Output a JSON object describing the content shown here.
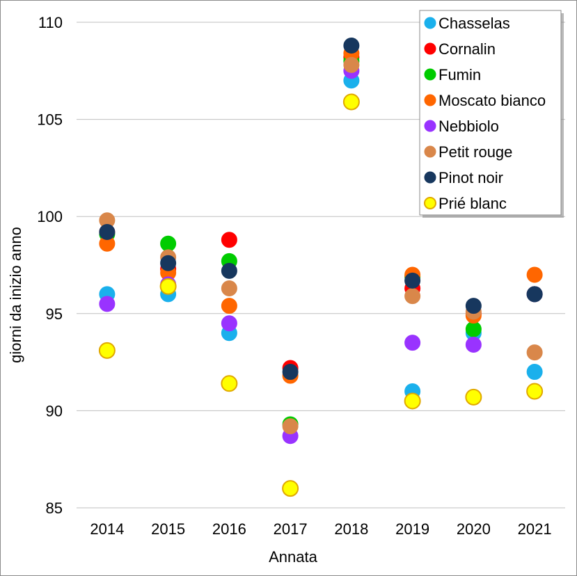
{
  "chart_data": {
    "type": "scatter",
    "xlabel": "Annata",
    "ylabel": "giorni da inizio anno",
    "categories": [
      "2014",
      "2015",
      "2016",
      "2017",
      "2018",
      "2019",
      "2020",
      "2021"
    ],
    "ylim": [
      85,
      110
    ],
    "yticks": [
      85,
      90,
      95,
      100,
      105,
      110
    ],
    "grid": true,
    "legend_position": "top-right",
    "series": [
      {
        "name": "Chasselas",
        "color": "#1ab0ec",
        "values": [
          96,
          96,
          94,
          null,
          107,
          91,
          94,
          92
        ]
      },
      {
        "name": "Cornalin",
        "color": "#ff0000",
        "values": [
          99.2,
          97.3,
          98.8,
          92.2,
          108.2,
          96.3,
          95,
          96
        ]
      },
      {
        "name": "Fumin",
        "color": "#00cc00",
        "values": [
          99.1,
          98.6,
          97.7,
          89.3,
          108,
          96.9,
          94.2,
          96
        ]
      },
      {
        "name": "Moscato bianco",
        "color": "#ff6600",
        "values": [
          98.6,
          97.1,
          95.4,
          91.8,
          108.4,
          97,
          94.9,
          97
        ]
      },
      {
        "name": "Nebbiolo",
        "color": "#9933ff",
        "values": [
          95.5,
          96.5,
          94.5,
          88.7,
          107.5,
          93.5,
          93.4,
          96
        ]
      },
      {
        "name": "Petit rouge",
        "color": "#d9874a",
        "values": [
          99.8,
          97.9,
          96.3,
          89.2,
          107.8,
          95.9,
          95.1,
          93
        ]
      },
      {
        "name": "Pinot noir",
        "color": "#17375e",
        "values": [
          99.2,
          97.6,
          97.2,
          92,
          108.8,
          96.7,
          95.4,
          96
        ]
      },
      {
        "name": "Prié blanc",
        "color": "#ffff00",
        "stroke": "#e0a800",
        "values": [
          93.1,
          96.4,
          91.4,
          86,
          105.9,
          90.5,
          90.7,
          91
        ]
      }
    ]
  }
}
